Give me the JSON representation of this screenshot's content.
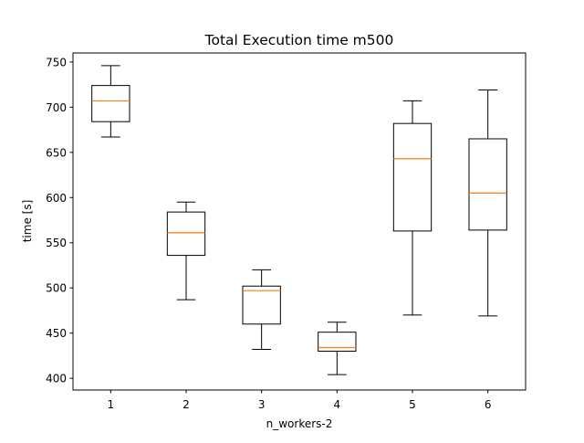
{
  "chart_data": {
    "type": "boxplot",
    "title": "Total Execution time m500",
    "xlabel": "n_workers-2",
    "ylabel": "time [s]",
    "categories": [
      "1",
      "2",
      "3",
      "4",
      "5",
      "6"
    ],
    "boxes": [
      {
        "category": "1",
        "whisker_low": 667,
        "q1": 684,
        "median": 707,
        "q3": 724,
        "whisker_high": 746
      },
      {
        "category": "2",
        "whisker_low": 487,
        "q1": 536,
        "median": 561,
        "q3": 584,
        "whisker_high": 595
      },
      {
        "category": "3",
        "whisker_low": 432,
        "q1": 460,
        "median": 497,
        "q3": 502,
        "whisker_high": 520
      },
      {
        "category": "4",
        "whisker_low": 404,
        "q1": 430,
        "median": 434,
        "q3": 451,
        "whisker_high": 462
      },
      {
        "category": "5",
        "whisker_low": 470,
        "q1": 563,
        "median": 643,
        "q3": 682,
        "whisker_high": 707
      },
      {
        "category": "6",
        "whisker_low": 469,
        "q1": 564,
        "median": 605,
        "q3": 665,
        "whisker_high": 719
      }
    ],
    "xlim": [
      0.5,
      6.5
    ],
    "ylim": [
      387,
      760
    ],
    "yticks": [
      400,
      450,
      500,
      550,
      600,
      650,
      700,
      750
    ],
    "grid": false,
    "colors": {
      "box": "#000000",
      "median": "#ff7f0e",
      "axes": "#000000",
      "background": "#ffffff"
    }
  }
}
